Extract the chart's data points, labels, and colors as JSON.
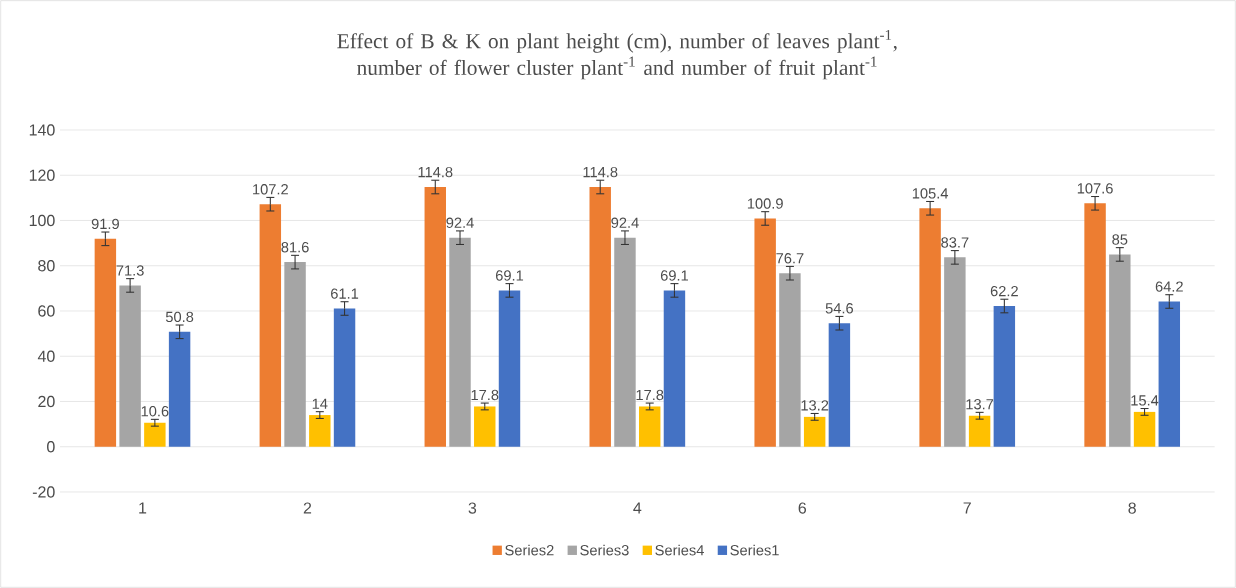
{
  "chart_data": {
    "type": "bar",
    "title": "Effect of B & K on plant height (cm), number of leaves plant$^{-1}$, number of flower cluster plant$^{-1}$ and number of fruit plant$^{-1}$",
    "categories": [
      "1",
      "2",
      "3",
      "4",
      "6",
      "7",
      "8"
    ],
    "series": [
      {
        "name": "Series2",
        "color": "#ed7d31",
        "values": [
          91.9,
          107.2,
          114.8,
          114.8,
          100.9,
          105.4,
          107.6
        ],
        "errors": [
          3,
          3,
          3,
          3,
          3,
          3,
          3
        ]
      },
      {
        "name": "Series3",
        "color": "#a5a5a5",
        "values": [
          71.3,
          81.6,
          92.4,
          92.4,
          76.7,
          83.7,
          85
        ],
        "errors": [
          3,
          3,
          3,
          3,
          3,
          3,
          3
        ]
      },
      {
        "name": "Series4",
        "color": "#ffc000",
        "values": [
          10.6,
          14,
          17.8,
          17.8,
          13.2,
          13.7,
          15.4
        ],
        "errors": [
          1.5,
          1.5,
          1.5,
          1.5,
          1.5,
          1.5,
          1.5
        ]
      },
      {
        "name": "Series1",
        "color": "#4472c4",
        "values": [
          50.8,
          61.1,
          69.1,
          69.1,
          54.6,
          62.2,
          64.2
        ],
        "errors": [
          3,
          3,
          3,
          3,
          3,
          3,
          3
        ]
      }
    ],
    "ylim": [
      -20,
      140
    ],
    "yticks": [
      -20,
      0,
      20,
      40,
      60,
      80,
      100,
      120,
      140
    ],
    "grid": "y",
    "legend": "bottom",
    "data_labels": true
  }
}
